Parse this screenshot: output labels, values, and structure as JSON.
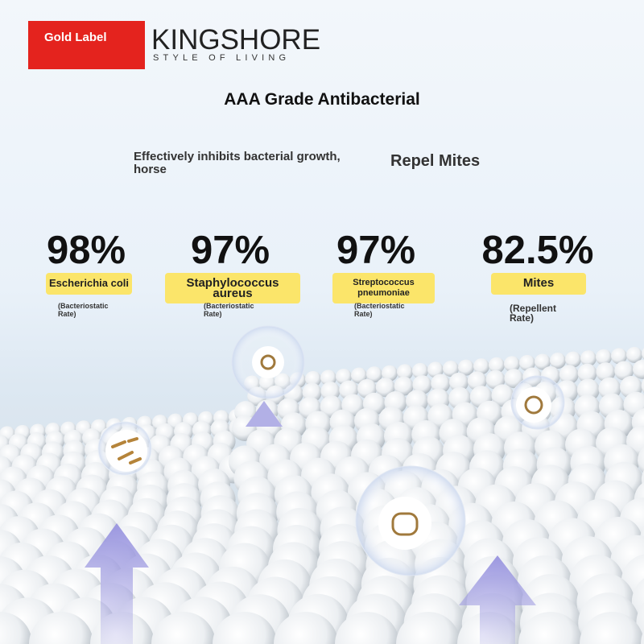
{
  "badge": "Gold Label",
  "brand": {
    "name": "KINGSHORE",
    "tagline": "STYLE OF LIVING"
  },
  "headline": "AAA Grade Antibacterial",
  "features": [
    "Effectively inhibits bacterial growth, horse",
    "Repel Mites"
  ],
  "stats": [
    {
      "value": "98%",
      "label": "Escherichia coli",
      "note": "(Bacteriostatic Rate)"
    },
    {
      "value": "97%",
      "label": "Staphylococcus aureus",
      "note": "(Bacteriostatic Rate)"
    },
    {
      "value": "97%",
      "label": "Streptococcus pneumoniae",
      "note": "(Bacteriostatic Rate)"
    },
    {
      "value": "82.5%",
      "label": "Mites",
      "note": "(Repellent Rate)"
    }
  ]
}
